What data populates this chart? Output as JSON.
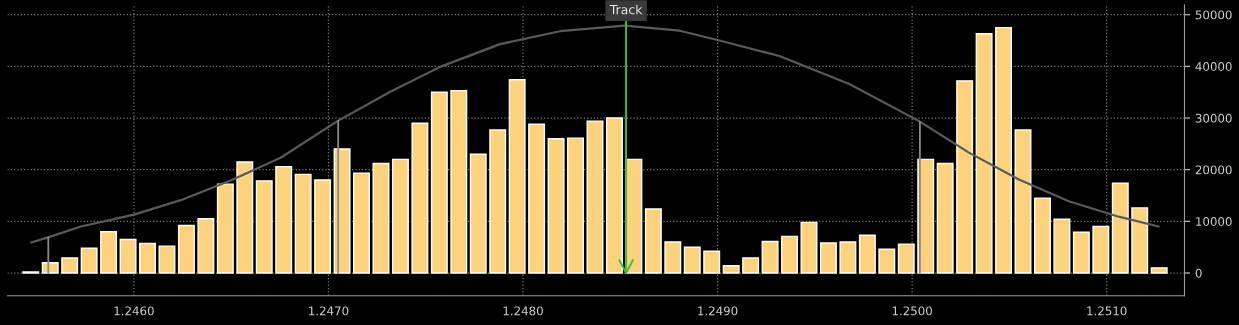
{
  "chart_data": {
    "type": "bar",
    "x": [
      1.24547,
      1.24557,
      1.24567,
      1.24577,
      1.24587,
      1.24597,
      1.24607,
      1.24617,
      1.24627,
      1.24637,
      1.24647,
      1.24657,
      1.24667,
      1.24677,
      1.24687,
      1.24697,
      1.24707,
      1.24717,
      1.24727,
      1.24737,
      1.24747,
      1.24757,
      1.24767,
      1.24777,
      1.24787,
      1.24797,
      1.24807,
      1.24817,
      1.24827,
      1.24837,
      1.24847,
      1.24857,
      1.24867,
      1.24877,
      1.24887,
      1.24897,
      1.24907,
      1.24917,
      1.24927,
      1.24937,
      1.24947,
      1.24957,
      1.24967,
      1.24977,
      1.24987,
      1.24997,
      1.25007,
      1.25017,
      1.25027,
      1.25037,
      1.25047,
      1.25057,
      1.25067,
      1.25077,
      1.25087,
      1.25097,
      1.25107,
      1.25117,
      1.25127
    ],
    "series": [
      {
        "color": "#fdd27c",
        "values": [
          200,
          2000,
          2900,
          4800,
          8000,
          6500,
          5700,
          5200,
          9200,
          10500,
          17200,
          21500,
          17800,
          20600,
          19100,
          18000,
          24000,
          19300,
          21200,
          22000,
          29000,
          35000,
          35300,
          23000,
          27700,
          37400,
          28800,
          26000,
          26100,
          29400,
          30000,
          22000,
          12400,
          6000,
          5000,
          4200,
          1400,
          2900,
          6100,
          7100,
          9800,
          5800,
          6000,
          7300,
          4600,
          5600,
          22000,
          21200,
          37200,
          46300,
          47500,
          27700,
          14500,
          10400,
          7900,
          9000,
          17400,
          12600,
          1000
        ]
      },
      {
        "type": "line",
        "color": "#5a5a5a",
        "x": [
          1.245472,
          1.245559,
          1.245728,
          1.246,
          1.246241,
          1.246497,
          1.246754,
          1.247046,
          1.247318,
          1.247574,
          1.247882,
          1.24819,
          1.248523,
          1.248805,
          1.24901,
          1.249318,
          1.249677,
          1.250036,
          1.250292,
          1.250549,
          1.250805,
          1.251062,
          1.251267
        ],
        "values": [
          5900,
          6900,
          9000,
          11300,
          14100,
          17900,
          22300,
          29400,
          35100,
          39900,
          44300,
          46800,
          47900,
          46900,
          45000,
          42000,
          36600,
          29400,
          23300,
          18100,
          13900,
          10900,
          9000
        ]
      }
    ],
    "ref_lines": [
      {
        "axis": "x",
        "value": 1.24556,
        "color": "#8a8a8a",
        "line_style": "solid"
      },
      {
        "axis": "x",
        "value": 1.24705,
        "color": "#8a8a8a",
        "line_style": "solid"
      },
      {
        "axis": "x",
        "value": 1.25004,
        "color": "#8a8a8a",
        "line_style": "solid"
      },
      {
        "axis": "x",
        "value": 1.24853,
        "label": "Track",
        "color": "#3cc43c",
        "line_style": "solid"
      }
    ],
    "xlim": [
      1.24535,
      1.2514
    ],
    "ylim": [
      -4400,
      51900
    ],
    "xticks": [
      {
        "value": 1.246,
        "label": "1.2460"
      },
      {
        "value": 1.247,
        "label": "1.2470"
      },
      {
        "value": 1.248,
        "label": "1.2480"
      },
      {
        "value": 1.249,
        "label": "1.2490"
      },
      {
        "value": 1.25,
        "label": "1.2500"
      },
      {
        "value": 1.251,
        "label": "1.2510"
      }
    ],
    "yticks": [
      0,
      10000,
      20000,
      30000,
      40000,
      50000
    ],
    "grid": true,
    "legend": false
  }
}
